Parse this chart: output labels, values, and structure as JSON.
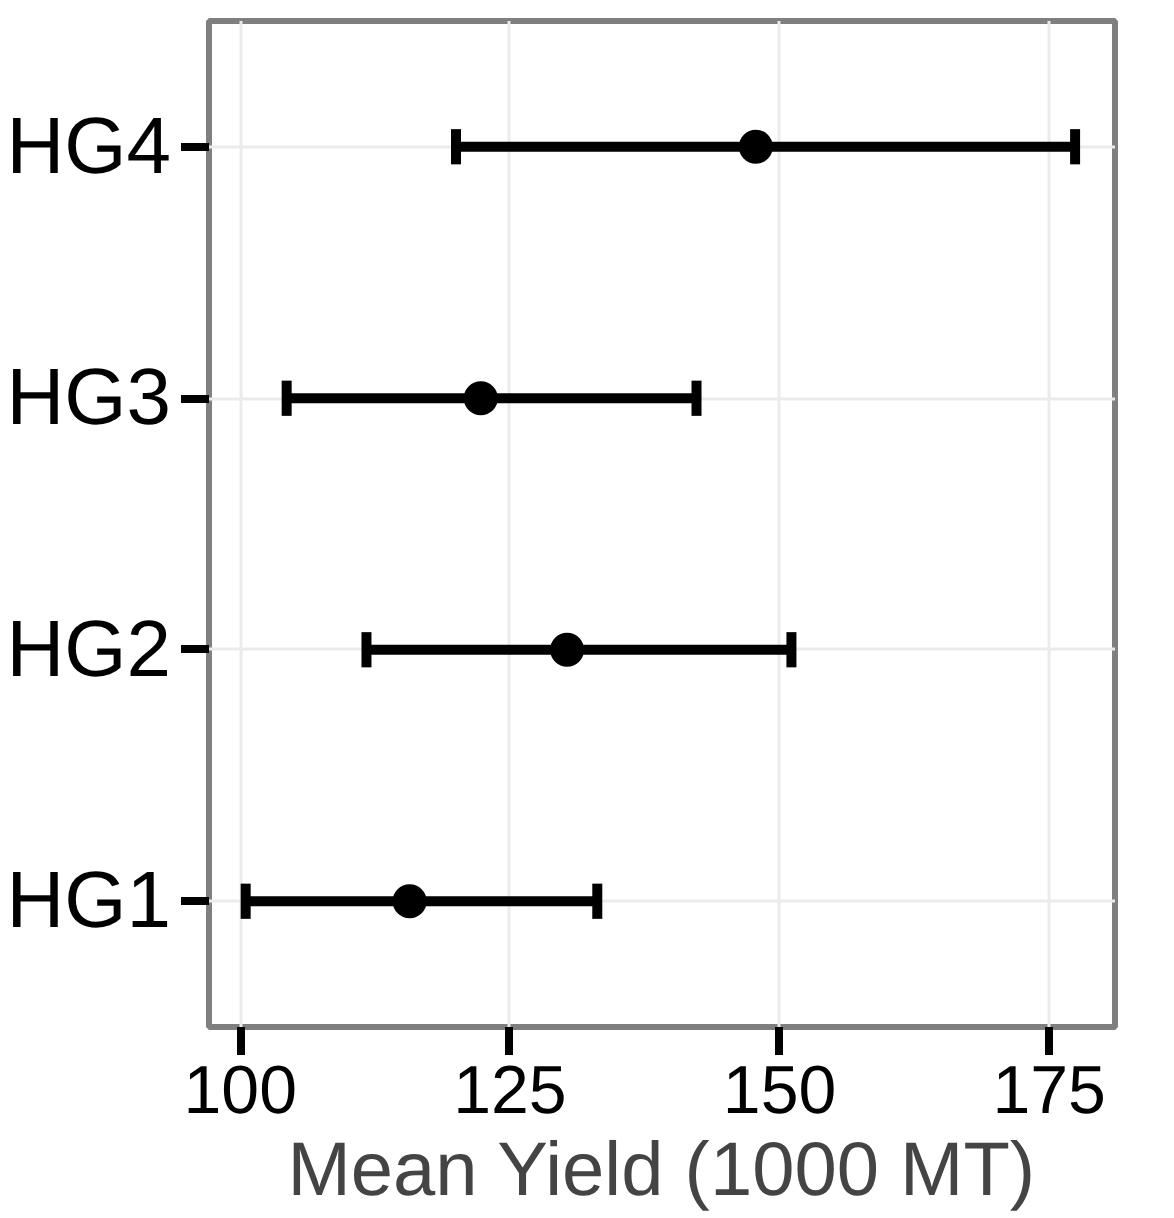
{
  "chart_data": {
    "type": "scatter",
    "orientation": "horizontal",
    "xlabel": "Mean Yield (1000 MT)",
    "categories": [
      "HG4",
      "HG3",
      "HG2",
      "HG1"
    ],
    "values": [
      147.8,
      122.3,
      130.3,
      115.7
    ],
    "errors": [
      [
        120.0,
        177.4
      ],
      [
        104.3,
        142.3
      ],
      [
        111.7,
        151.1
      ],
      [
        100.5,
        133.1
      ]
    ],
    "color": "#000000",
    "marker": "circle",
    "xlim": [
      97.1,
      181.1
    ],
    "xticks": [
      100,
      125,
      150,
      175
    ],
    "grid": true
  }
}
